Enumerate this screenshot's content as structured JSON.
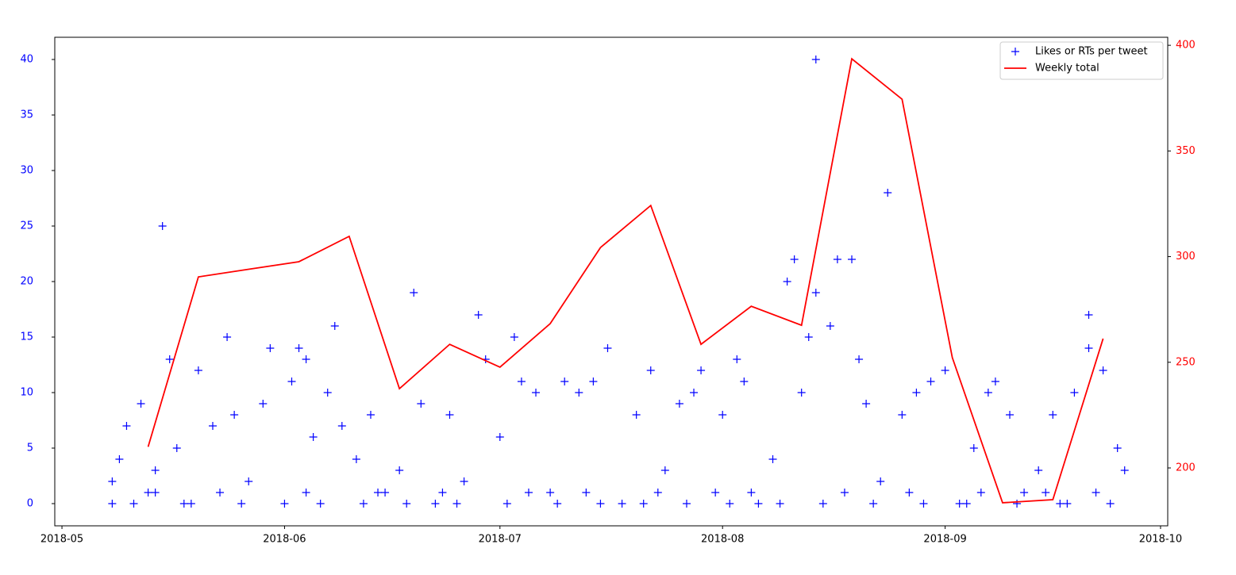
{
  "chart_data": {
    "type": "scatter_line",
    "xlim": [
      "2018-04-30",
      "2018-10-02"
    ],
    "xticks": [
      {
        "value": "2018-05-01",
        "label": "2018-05"
      },
      {
        "value": "2018-06-01",
        "label": "2018-06"
      },
      {
        "value": "2018-07-01",
        "label": "2018-07"
      },
      {
        "value": "2018-08-01",
        "label": "2018-08"
      },
      {
        "value": "2018-09-01",
        "label": "2018-09"
      },
      {
        "value": "2018-10-01",
        "label": "2018-10"
      }
    ],
    "ylim": [
      -2,
      42
    ],
    "yticks": [
      0,
      5,
      10,
      15,
      20,
      25,
      30,
      35,
      40
    ],
    "ycolor": "blue",
    "y2lim": [
      172.6,
      403.8
    ],
    "y2ticks": [
      200,
      250,
      300,
      350,
      400
    ],
    "y2color": "red",
    "legend": "upper right",
    "series": [
      {
        "name": "Likes or RTs per tweet",
        "kind": "scatter",
        "color": "blue",
        "x": [
          "2018-05-08",
          "2018-05-08",
          "2018-05-09",
          "2018-05-10",
          "2018-05-12",
          "2018-05-13",
          "2018-05-14",
          "2018-05-15",
          "2018-05-16",
          "2018-05-17",
          "2018-05-18",
          "2018-05-20",
          "2018-05-22",
          "2018-05-24",
          "2018-05-25",
          "2018-05-27",
          "2018-05-29",
          "2018-05-30",
          "2018-06-01",
          "2018-06-02",
          "2018-06-03",
          "2018-06-04",
          "2018-06-05",
          "2018-06-07",
          "2018-06-08",
          "2018-06-09",
          "2018-06-11",
          "2018-06-13",
          "2018-06-15",
          "2018-06-17",
          "2018-06-19",
          "2018-06-20",
          "2018-06-22",
          "2018-06-24",
          "2018-06-26",
          "2018-06-28",
          "2018-06-29",
          "2018-07-01",
          "2018-07-03",
          "2018-07-04",
          "2018-07-06",
          "2018-07-08",
          "2018-07-10",
          "2018-07-12",
          "2018-07-14",
          "2018-07-16",
          "2018-07-18",
          "2018-07-20",
          "2018-07-22",
          "2018-07-24",
          "2018-07-26",
          "2018-07-28",
          "2018-07-29",
          "2018-07-31",
          "2018-08-01",
          "2018-08-03",
          "2018-08-04",
          "2018-08-06",
          "2018-08-08",
          "2018-08-10",
          "2018-08-11",
          "2018-08-12",
          "2018-08-13",
          "2018-08-14",
          "2018-08-14",
          "2018-08-16",
          "2018-08-17",
          "2018-08-19",
          "2018-08-20",
          "2018-08-21",
          "2018-08-23",
          "2018-08-24",
          "2018-08-26",
          "2018-08-28",
          "2018-08-30",
          "2018-09-01",
          "2018-09-03",
          "2018-09-05",
          "2018-09-07",
          "2018-09-08",
          "2018-09-10",
          "2018-09-12",
          "2018-09-14",
          "2018-09-16",
          "2018-09-18",
          "2018-09-19",
          "2018-09-21",
          "2018-09-21",
          "2018-09-23",
          "2018-09-25",
          "2018-09-26",
          "2018-05-11",
          "2018-05-19",
          "2018-05-26",
          "2018-06-06",
          "2018-06-12",
          "2018-06-18",
          "2018-06-25",
          "2018-07-02",
          "2018-07-09",
          "2018-07-15",
          "2018-07-21",
          "2018-07-27",
          "2018-08-02",
          "2018-08-09",
          "2018-08-15",
          "2018-08-22",
          "2018-08-29",
          "2018-09-04",
          "2018-09-11",
          "2018-09-17",
          "2018-09-24",
          "2018-05-14",
          "2018-05-23",
          "2018-06-04",
          "2018-06-14",
          "2018-06-23",
          "2018-07-05",
          "2018-07-13",
          "2018-07-23",
          "2018-08-05",
          "2018-08-18",
          "2018-08-27",
          "2018-09-06",
          "2018-09-15",
          "2018-09-22"
        ],
        "values": [
          0,
          2,
          4,
          7,
          9,
          1,
          3,
          25,
          13,
          5,
          0,
          12,
          7,
          15,
          8,
          2,
          9,
          14,
          0,
          11,
          14,
          13,
          6,
          10,
          16,
          7,
          4,
          8,
          1,
          3,
          19,
          9,
          0,
          8,
          2,
          17,
          13,
          6,
          15,
          11,
          10,
          1,
          11,
          10,
          11,
          14,
          0,
          8,
          12,
          3,
          9,
          10,
          12,
          1,
          8,
          13,
          11,
          0,
          4,
          20,
          22,
          10,
          15,
          40,
          19,
          16,
          22,
          22,
          13,
          9,
          2,
          28,
          8,
          10,
          11,
          12,
          0,
          5,
          10,
          11,
          8,
          1,
          3,
          8,
          0,
          10,
          17,
          14,
          12,
          5,
          3,
          0,
          0,
          0,
          0,
          0,
          0,
          0,
          0,
          0,
          0,
          0,
          0,
          0,
          0,
          0,
          0,
          0,
          0,
          0,
          0,
          0,
          1,
          1,
          1,
          1,
          1,
          1,
          1,
          1,
          1,
          1,
          1,
          1,
          1,
          1
        ]
      },
      {
        "name": "Weekly total",
        "kind": "line",
        "color": "red",
        "axis": "y2",
        "x": [
          "2018-05-13",
          "2018-05-20",
          "2018-05-27",
          "2018-06-03",
          "2018-06-10",
          "2018-06-17",
          "2018-06-24",
          "2018-07-01",
          "2018-07-08",
          "2018-07-15",
          "2018-07-22",
          "2018-07-29",
          "2018-08-05",
          "2018-08-12",
          "2018-08-19",
          "2018-08-26",
          "2018-09-02",
          "2018-09-09",
          "2018-09-16",
          "2018-09-23"
        ],
        "values": [
          210,
          290.4,
          294,
          297.6,
          309.6,
          237.5,
          258.5,
          247.7,
          268.3,
          304.3,
          324.2,
          258.5,
          276.5,
          267.5,
          393.6,
          374.5,
          252.2,
          183.5,
          185,
          261.2
        ]
      }
    ]
  }
}
